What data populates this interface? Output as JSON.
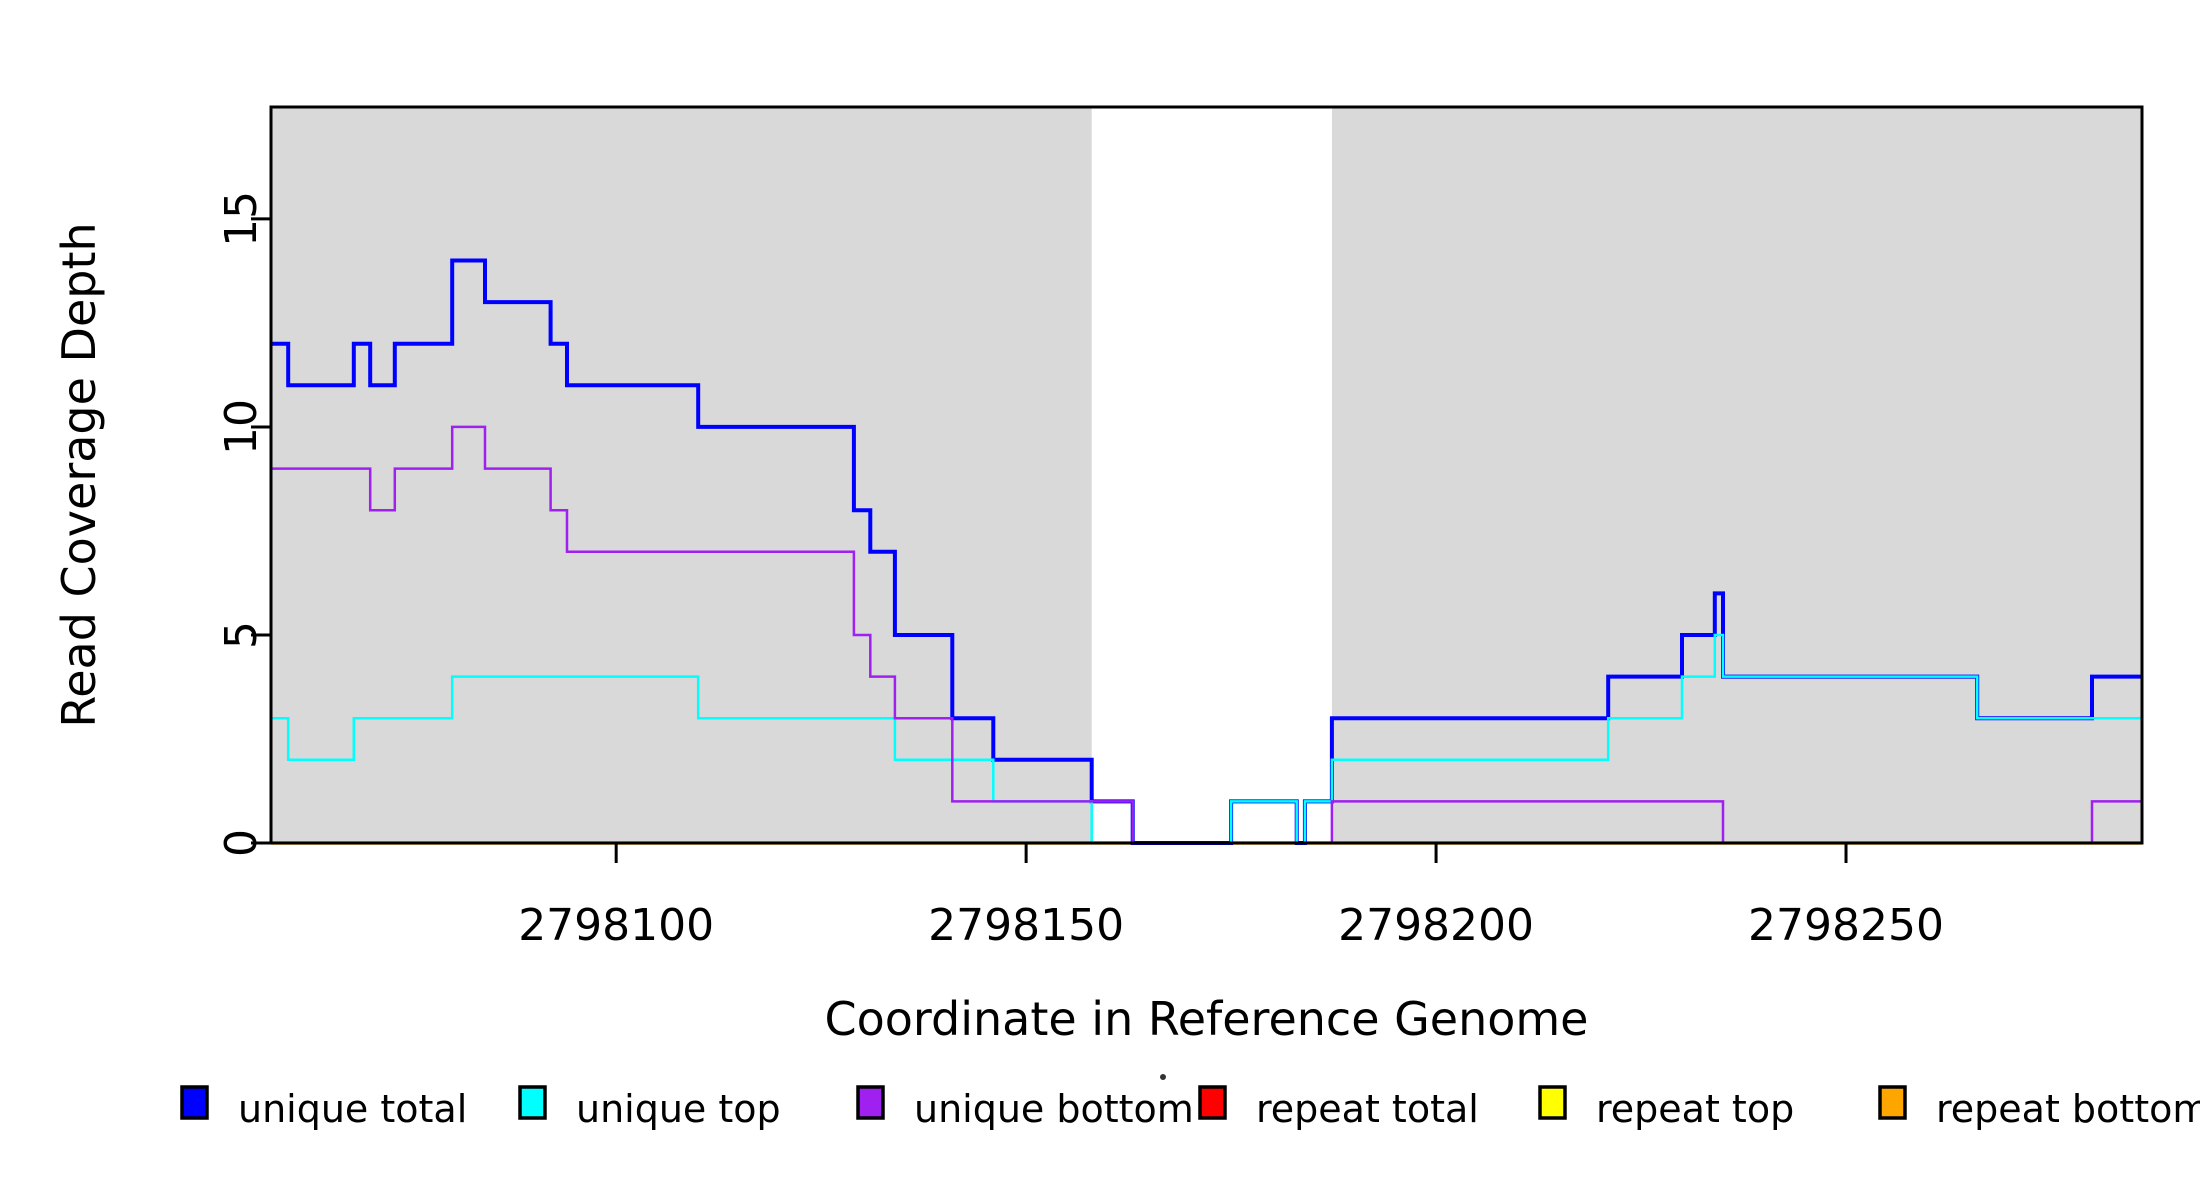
{
  "chart_data": {
    "type": "line",
    "step": "after",
    "title": "",
    "xlabel": "Coordinate in Reference Genome",
    "ylabel": "Read Coverage Depth",
    "xlim": [
      2798057.9,
      2798286.1
    ],
    "ylim": [
      0,
      17.69
    ],
    "x_ticks": [
      2798100,
      2798150,
      2798200,
      2798250
    ],
    "y_ticks": [
      0,
      5,
      10,
      15
    ],
    "grid": false,
    "legend_position": "bottom",
    "colors": {
      "background": "#FFFFFF",
      "shading": "#D9D9D9",
      "axis": "#000000"
    },
    "shaded_regions": [
      {
        "name": "unique-region-left",
        "x0": 2798057.9,
        "x1": 2798158.0
      },
      {
        "name": "unique-region-right",
        "x0": 2798187.3,
        "x1": 2798286.1
      }
    ],
    "series": [
      {
        "name": "repeat total",
        "color": "#FF0000",
        "width": 3,
        "points": [
          [
            2798057.9,
            0
          ]
        ]
      },
      {
        "name": "repeat top",
        "color": "#FFFF00",
        "width": 3,
        "points": [
          [
            2798057.9,
            0
          ]
        ]
      },
      {
        "name": "repeat bottom",
        "color": "#FFA500",
        "width": 3.5,
        "points": [
          [
            2798057.9,
            0
          ]
        ]
      },
      {
        "name": "unique total",
        "color": "#0000FF",
        "width": 4,
        "points": [
          [
            2798057.9,
            12
          ],
          [
            2798060,
            11
          ],
          [
            2798068,
            12
          ],
          [
            2798070,
            11
          ],
          [
            2798073,
            12
          ],
          [
            2798080,
            14
          ],
          [
            2798084,
            13
          ],
          [
            2798092,
            12
          ],
          [
            2798094,
            11
          ],
          [
            2798110,
            10
          ],
          [
            2798129,
            8
          ],
          [
            2798131,
            7
          ],
          [
            2798134,
            5
          ],
          [
            2798141,
            3
          ],
          [
            2798146,
            2
          ],
          [
            2798158,
            1
          ],
          [
            2798163,
            0
          ],
          [
            2798175,
            1
          ],
          [
            2798183,
            0
          ],
          [
            2798184,
            1
          ],
          [
            2798187.3,
            3
          ],
          [
            2798221,
            4
          ],
          [
            2798230,
            5
          ],
          [
            2798234,
            6
          ],
          [
            2798235,
            4
          ],
          [
            2798266,
            3
          ],
          [
            2798280,
            4
          ]
        ]
      },
      {
        "name": "unique top",
        "color": "#00FFFF",
        "width": 2.5,
        "points": [
          [
            2798057.9,
            3
          ],
          [
            2798060,
            2
          ],
          [
            2798068,
            3
          ],
          [
            2798080,
            4
          ],
          [
            2798110,
            3
          ],
          [
            2798134,
            2
          ],
          [
            2798146,
            1
          ],
          [
            2798158,
            0
          ],
          [
            2798175,
            1
          ],
          [
            2798183,
            0
          ],
          [
            2798184,
            1
          ],
          [
            2798187.3,
            2
          ],
          [
            2798221,
            3
          ],
          [
            2798230,
            4
          ],
          [
            2798234,
            5
          ],
          [
            2798235,
            4
          ],
          [
            2798266,
            3
          ]
        ]
      },
      {
        "name": "unique bottom",
        "color": "#A020F0",
        "width": 2.5,
        "points": [
          [
            2798057.9,
            9
          ],
          [
            2798070,
            8
          ],
          [
            2798073,
            9
          ],
          [
            2798080,
            10
          ],
          [
            2798084,
            9
          ],
          [
            2798092,
            8
          ],
          [
            2798094,
            7
          ],
          [
            2798129,
            5
          ],
          [
            2798131,
            4
          ],
          [
            2798134,
            3
          ],
          [
            2798141,
            1
          ],
          [
            2798163,
            0
          ],
          [
            2798187.3,
            1
          ],
          [
            2798235,
            0
          ],
          [
            2798280,
            1
          ]
        ]
      }
    ],
    "legend": [
      {
        "label": "unique total",
        "color": "#0000FF"
      },
      {
        "label": "unique top",
        "color": "#00FFFF"
      },
      {
        "label": "unique bottom",
        "color": "#A020F0"
      },
      {
        "label": "repeat total",
        "color": "#FF0000"
      },
      {
        "label": "repeat top",
        "color": "#FFFF00"
      },
      {
        "label": "repeat bottom",
        "color": "#FFA500"
      }
    ]
  }
}
